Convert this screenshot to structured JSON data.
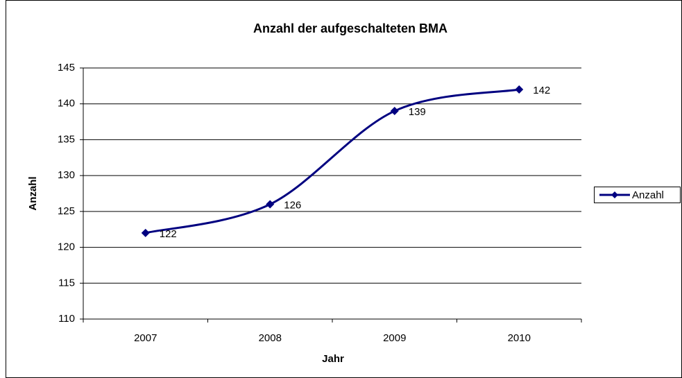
{
  "chart_data": {
    "type": "line",
    "title": "Anzahl der aufgeschalteten BMA",
    "x_label": "Jahr",
    "y_label": "Anzahl",
    "categories": [
      "2007",
      "2008",
      "2009",
      "2010"
    ],
    "series": [
      {
        "name": "Anzahl",
        "color": "#000080",
        "values": [
          122,
          126,
          139,
          142
        ]
      }
    ],
    "ylim": [
      110,
      145
    ],
    "yticks": [
      110,
      115,
      120,
      125,
      130,
      135,
      140,
      145
    ],
    "grid": true,
    "smooth": true,
    "data_labels": true,
    "legend": "right"
  }
}
